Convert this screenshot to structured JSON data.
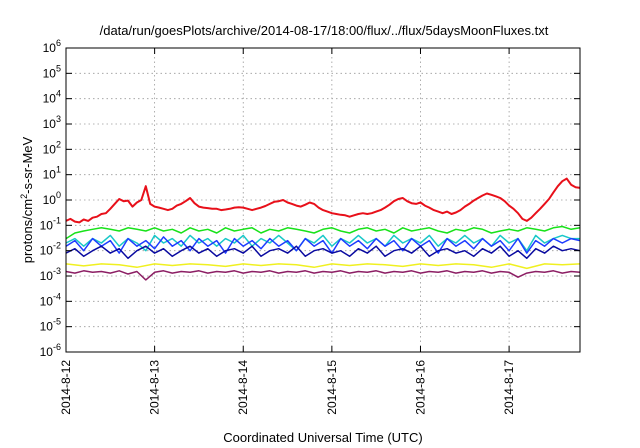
{
  "chart_data": {
    "type": "line",
    "title": "/data/run/goesPlots/archive/2014-08-17/18:00/flux/../flux/5daysMoonFluxes.txt",
    "xlabel": "Coordinated Universal Time (UTC)",
    "ylabel": {
      "prefix": "protons/cm",
      "sup": "2",
      "suffix": "-s-sr-MeV"
    },
    "yscale": "log",
    "ylim": [
      1e-06,
      1000000.0
    ],
    "xlim": [
      0,
      5.8
    ],
    "grid": true,
    "x_ticks": [
      {
        "value": 0,
        "label": "2014-8-12"
      },
      {
        "value": 1,
        "label": "2014-8-13"
      },
      {
        "value": 2,
        "label": "2014-8-14"
      },
      {
        "value": 3,
        "label": "2014-8-15"
      },
      {
        "value": 4,
        "label": "2014-8-16"
      },
      {
        "value": 5,
        "label": "2014-8-17"
      }
    ],
    "y_ticks": [
      {
        "value": 1000000.0,
        "base": "10",
        "exp": "6"
      },
      {
        "value": 100000.0,
        "base": "10",
        "exp": "5"
      },
      {
        "value": 10000.0,
        "base": "10",
        "exp": "4"
      },
      {
        "value": 1000.0,
        "base": "10",
        "exp": "3"
      },
      {
        "value": 100.0,
        "base": "10",
        "exp": "2"
      },
      {
        "value": 10.0,
        "base": "10",
        "exp": "1"
      },
      {
        "value": 1.0,
        "base": "10",
        "exp": "0"
      },
      {
        "value": 0.1,
        "base": "10",
        "exp": "-1"
      },
      {
        "value": 0.01,
        "base": "10",
        "exp": "-2"
      },
      {
        "value": 0.001,
        "base": "10",
        "exp": "-3"
      },
      {
        "value": 0.0001,
        "base": "10",
        "exp": "-4"
      },
      {
        "value": 1e-05,
        "base": "10",
        "exp": "-5"
      },
      {
        "value": 1e-06,
        "base": "10",
        "exp": "-6"
      }
    ],
    "series": [
      {
        "color": "#e8101a",
        "width": 2,
        "x": [
          0.0,
          0.05,
          0.1,
          0.15,
          0.2,
          0.25,
          0.3,
          0.35,
          0.4,
          0.45,
          0.5,
          0.55,
          0.6,
          0.65,
          0.7,
          0.75,
          0.8,
          0.85,
          0.9,
          0.95,
          1.0,
          1.05,
          1.1,
          1.15,
          1.2,
          1.25,
          1.3,
          1.35,
          1.4,
          1.45,
          1.5,
          1.55,
          1.6,
          1.65,
          1.7,
          1.75,
          1.8,
          1.85,
          1.9,
          1.95,
          2.0,
          2.05,
          2.1,
          2.15,
          2.2,
          2.25,
          2.3,
          2.35,
          2.4,
          2.45,
          2.5,
          2.55,
          2.6,
          2.65,
          2.7,
          2.75,
          2.8,
          2.85,
          2.9,
          2.95,
          3.0,
          3.05,
          3.1,
          3.15,
          3.2,
          3.25,
          3.3,
          3.35,
          3.4,
          3.45,
          3.5,
          3.55,
          3.6,
          3.65,
          3.7,
          3.75,
          3.8,
          3.85,
          3.9,
          3.95,
          4.0,
          4.05,
          4.1,
          4.15,
          4.2,
          4.25,
          4.3,
          4.35,
          4.4,
          4.45,
          4.5,
          4.55,
          4.6,
          4.65,
          4.7,
          4.75,
          4.8,
          4.85,
          4.9,
          4.95,
          5.0,
          5.05,
          5.1,
          5.15,
          5.2,
          5.25,
          5.3,
          5.35,
          5.4,
          5.45,
          5.5,
          5.55,
          5.6,
          5.65,
          5.7,
          5.75,
          5.8
        ],
        "y": [
          0.15,
          0.18,
          0.14,
          0.13,
          0.17,
          0.15,
          0.2,
          0.22,
          0.28,
          0.3,
          0.45,
          0.7,
          1.1,
          0.9,
          0.95,
          0.55,
          0.8,
          1.0,
          3.5,
          0.7,
          0.55,
          0.5,
          0.45,
          0.4,
          0.45,
          0.6,
          0.7,
          0.9,
          1.2,
          0.75,
          0.55,
          0.5,
          0.48,
          0.45,
          0.45,
          0.4,
          0.42,
          0.45,
          0.5,
          0.52,
          0.5,
          0.45,
          0.4,
          0.45,
          0.5,
          0.58,
          0.7,
          0.85,
          0.9,
          1.0,
          0.8,
          0.7,
          0.6,
          0.55,
          0.65,
          0.8,
          0.7,
          0.5,
          0.4,
          0.35,
          0.3,
          0.28,
          0.26,
          0.25,
          0.22,
          0.25,
          0.28,
          0.3,
          0.28,
          0.3,
          0.35,
          0.4,
          0.5,
          0.65,
          0.9,
          1.1,
          1.2,
          0.9,
          0.75,
          0.7,
          0.8,
          0.6,
          0.5,
          0.4,
          0.35,
          0.3,
          0.35,
          0.28,
          0.32,
          0.4,
          0.55,
          0.7,
          0.95,
          1.2,
          1.5,
          1.8,
          1.6,
          1.4,
          1.2,
          0.9,
          0.6,
          0.45,
          0.3,
          0.18,
          0.15,
          0.2,
          0.3,
          0.45,
          0.7,
          1.1,
          2.0,
          3.5,
          5.5,
          7.0,
          4.0,
          3.2,
          3.0
        ]
      },
      {
        "color": "#18e21a",
        "width": 1.5,
        "x": [
          0.0,
          0.1,
          0.2,
          0.3,
          0.4,
          0.5,
          0.6,
          0.7,
          0.8,
          0.9,
          1.0,
          1.1,
          1.2,
          1.3,
          1.4,
          1.5,
          1.6,
          1.7,
          1.8,
          1.9,
          2.0,
          2.1,
          2.2,
          2.3,
          2.4,
          2.5,
          2.6,
          2.7,
          2.8,
          2.9,
          3.0,
          3.1,
          3.2,
          3.3,
          3.4,
          3.5,
          3.6,
          3.7,
          3.8,
          3.9,
          4.0,
          4.1,
          4.2,
          4.3,
          4.4,
          4.5,
          4.6,
          4.7,
          4.8,
          4.9,
          5.0,
          5.1,
          5.2,
          5.3,
          5.4,
          5.5,
          5.6,
          5.7,
          5.8
        ],
        "y": [
          0.03,
          0.05,
          0.06,
          0.07,
          0.08,
          0.07,
          0.06,
          0.08,
          0.07,
          0.06,
          0.08,
          0.06,
          0.07,
          0.05,
          0.08,
          0.06,
          0.07,
          0.05,
          0.08,
          0.06,
          0.07,
          0.08,
          0.05,
          0.07,
          0.06,
          0.08,
          0.07,
          0.06,
          0.05,
          0.07,
          0.08,
          0.06,
          0.05,
          0.07,
          0.08,
          0.06,
          0.07,
          0.05,
          0.08,
          0.06,
          0.07,
          0.08,
          0.06,
          0.05,
          0.07,
          0.06,
          0.08,
          0.07,
          0.05,
          0.06,
          0.07,
          0.06,
          0.08,
          0.07,
          0.06,
          0.08,
          0.09,
          0.07,
          0.08
        ]
      },
      {
        "color": "#19c8c8",
        "width": 1.5,
        "x": [
          0.0,
          0.1,
          0.2,
          0.3,
          0.4,
          0.5,
          0.6,
          0.7,
          0.8,
          0.9,
          1.0,
          1.1,
          1.2,
          1.3,
          1.4,
          1.5,
          1.6,
          1.7,
          1.8,
          1.9,
          2.0,
          2.1,
          2.2,
          2.3,
          2.4,
          2.5,
          2.6,
          2.7,
          2.8,
          2.9,
          3.0,
          3.1,
          3.2,
          3.3,
          3.4,
          3.5,
          3.6,
          3.7,
          3.8,
          3.9,
          4.0,
          4.1,
          4.2,
          4.3,
          4.4,
          4.5,
          4.6,
          4.7,
          4.8,
          4.9,
          5.0,
          5.1,
          5.2,
          5.3,
          5.4,
          5.5,
          5.6,
          5.7,
          5.8
        ],
        "y": [
          0.02,
          0.03,
          0.015,
          0.03,
          0.02,
          0.04,
          0.015,
          0.03,
          0.02,
          0.01,
          0.04,
          0.02,
          0.03,
          0.015,
          0.04,
          0.02,
          0.03,
          0.015,
          0.03,
          0.02,
          0.04,
          0.015,
          0.03,
          0.02,
          0.04,
          0.02,
          0.01,
          0.03,
          0.02,
          0.04,
          0.015,
          0.03,
          0.02,
          0.04,
          0.02,
          0.03,
          0.015,
          0.04,
          0.02,
          0.03,
          0.02,
          0.04,
          0.015,
          0.03,
          0.02,
          0.04,
          0.02,
          0.03,
          0.015,
          0.04,
          0.02,
          0.03,
          0.01,
          0.04,
          0.02,
          0.03,
          0.04,
          0.03,
          0.03
        ]
      },
      {
        "color": "#1e3cff",
        "width": 1.5,
        "x": [
          0.0,
          0.1,
          0.2,
          0.3,
          0.4,
          0.5,
          0.6,
          0.7,
          0.8,
          0.9,
          1.0,
          1.1,
          1.2,
          1.3,
          1.4,
          1.5,
          1.6,
          1.7,
          1.8,
          1.9,
          2.0,
          2.1,
          2.2,
          2.3,
          2.4,
          2.5,
          2.6,
          2.7,
          2.8,
          2.9,
          3.0,
          3.1,
          3.2,
          3.3,
          3.4,
          3.5,
          3.6,
          3.7,
          3.8,
          3.9,
          4.0,
          4.1,
          4.2,
          4.3,
          4.4,
          4.5,
          4.6,
          4.7,
          4.8,
          4.9,
          5.0,
          5.1,
          5.2,
          5.3,
          5.4,
          5.5,
          5.6,
          5.7,
          5.8
        ],
        "y": [
          0.015,
          0.025,
          0.01,
          0.03,
          0.015,
          0.025,
          0.008,
          0.03,
          0.015,
          0.025,
          0.012,
          0.035,
          0.015,
          0.025,
          0.01,
          0.03,
          0.015,
          0.025,
          0.008,
          0.03,
          0.015,
          0.025,
          0.012,
          0.03,
          0.015,
          0.025,
          0.01,
          0.03,
          0.015,
          0.025,
          0.008,
          0.03,
          0.015,
          0.025,
          0.012,
          0.03,
          0.015,
          0.025,
          0.01,
          0.03,
          0.015,
          0.025,
          0.008,
          0.03,
          0.015,
          0.025,
          0.012,
          0.03,
          0.015,
          0.025,
          0.01,
          0.03,
          0.008,
          0.025,
          0.015,
          0.03,
          0.02,
          0.03,
          0.025
        ]
      },
      {
        "color": "#0a0aa0",
        "width": 1.5,
        "x": [
          0.0,
          0.1,
          0.2,
          0.3,
          0.4,
          0.5,
          0.6,
          0.7,
          0.8,
          0.9,
          1.0,
          1.1,
          1.2,
          1.3,
          1.4,
          1.5,
          1.6,
          1.7,
          1.8,
          1.9,
          2.0,
          2.1,
          2.2,
          2.3,
          2.4,
          2.5,
          2.6,
          2.7,
          2.8,
          2.9,
          3.0,
          3.1,
          3.2,
          3.3,
          3.4,
          3.5,
          3.6,
          3.7,
          3.8,
          3.9,
          4.0,
          4.1,
          4.2,
          4.3,
          4.4,
          4.5,
          4.6,
          4.7,
          4.8,
          4.9,
          5.0,
          5.1,
          5.2,
          5.3,
          5.4,
          5.5,
          5.6,
          5.7,
          5.8
        ],
        "y": [
          0.008,
          0.012,
          0.006,
          0.01,
          0.015,
          0.008,
          0.012,
          0.005,
          0.01,
          0.015,
          0.008,
          0.012,
          0.006,
          0.01,
          0.015,
          0.008,
          0.012,
          0.006,
          0.01,
          0.012,
          0.008,
          0.015,
          0.006,
          0.01,
          0.012,
          0.008,
          0.015,
          0.006,
          0.01,
          0.012,
          0.008,
          0.01,
          0.006,
          0.012,
          0.008,
          0.015,
          0.006,
          0.01,
          0.012,
          0.008,
          0.015,
          0.006,
          0.01,
          0.012,
          0.008,
          0.01,
          0.006,
          0.012,
          0.008,
          0.015,
          0.006,
          0.01,
          0.005,
          0.012,
          0.008,
          0.015,
          0.01,
          0.012,
          0.01
        ]
      },
      {
        "color": "#f0f020",
        "width": 1.5,
        "x": [
          0.0,
          0.2,
          0.4,
          0.6,
          0.8,
          1.0,
          1.2,
          1.4,
          1.6,
          1.8,
          2.0,
          2.2,
          2.4,
          2.6,
          2.8,
          3.0,
          3.2,
          3.4,
          3.6,
          3.8,
          4.0,
          4.2,
          4.4,
          4.6,
          4.8,
          5.0,
          5.2,
          5.4,
          5.6,
          5.8
        ],
        "y": [
          0.003,
          0.0025,
          0.003,
          0.0028,
          0.0022,
          0.003,
          0.0026,
          0.003,
          0.0028,
          0.0024,
          0.003,
          0.0026,
          0.003,
          0.0028,
          0.0022,
          0.003,
          0.0026,
          0.003,
          0.0028,
          0.0024,
          0.003,
          0.0026,
          0.003,
          0.0028,
          0.0022,
          0.003,
          0.002,
          0.003,
          0.0028,
          0.003
        ]
      },
      {
        "color": "#8c1e64",
        "width": 1.5,
        "x": [
          0.0,
          0.1,
          0.2,
          0.3,
          0.4,
          0.5,
          0.6,
          0.7,
          0.8,
          0.9,
          1.0,
          1.1,
          1.2,
          1.3,
          1.4,
          1.5,
          1.6,
          1.7,
          1.8,
          1.9,
          2.0,
          2.1,
          2.2,
          2.3,
          2.4,
          2.5,
          2.6,
          2.7,
          2.8,
          2.9,
          3.0,
          3.1,
          3.2,
          3.3,
          3.4,
          3.5,
          3.6,
          3.7,
          3.8,
          3.9,
          4.0,
          4.1,
          4.2,
          4.3,
          4.4,
          4.5,
          4.6,
          4.7,
          4.8,
          4.9,
          5.0,
          5.1,
          5.2,
          5.3,
          5.4,
          5.5,
          5.6,
          5.7,
          5.8
        ],
        "y": [
          0.0015,
          0.0013,
          0.0016,
          0.0014,
          0.0015,
          0.0013,
          0.0016,
          0.0012,
          0.0015,
          0.0007,
          0.0014,
          0.0016,
          0.0013,
          0.0015,
          0.0014,
          0.0016,
          0.0013,
          0.0015,
          0.0014,
          0.0016,
          0.0013,
          0.0015,
          0.0014,
          0.0016,
          0.0013,
          0.0015,
          0.0014,
          0.0016,
          0.0013,
          0.0015,
          0.0014,
          0.0016,
          0.0013,
          0.0015,
          0.0014,
          0.0016,
          0.0013,
          0.0015,
          0.0014,
          0.0016,
          0.0013,
          0.0015,
          0.0014,
          0.0016,
          0.0013,
          0.0015,
          0.0014,
          0.0016,
          0.0013,
          0.0015,
          0.0014,
          0.0009,
          0.0013,
          0.0015,
          0.0014,
          0.0016,
          0.0013,
          0.0015,
          0.0014
        ]
      }
    ]
  }
}
